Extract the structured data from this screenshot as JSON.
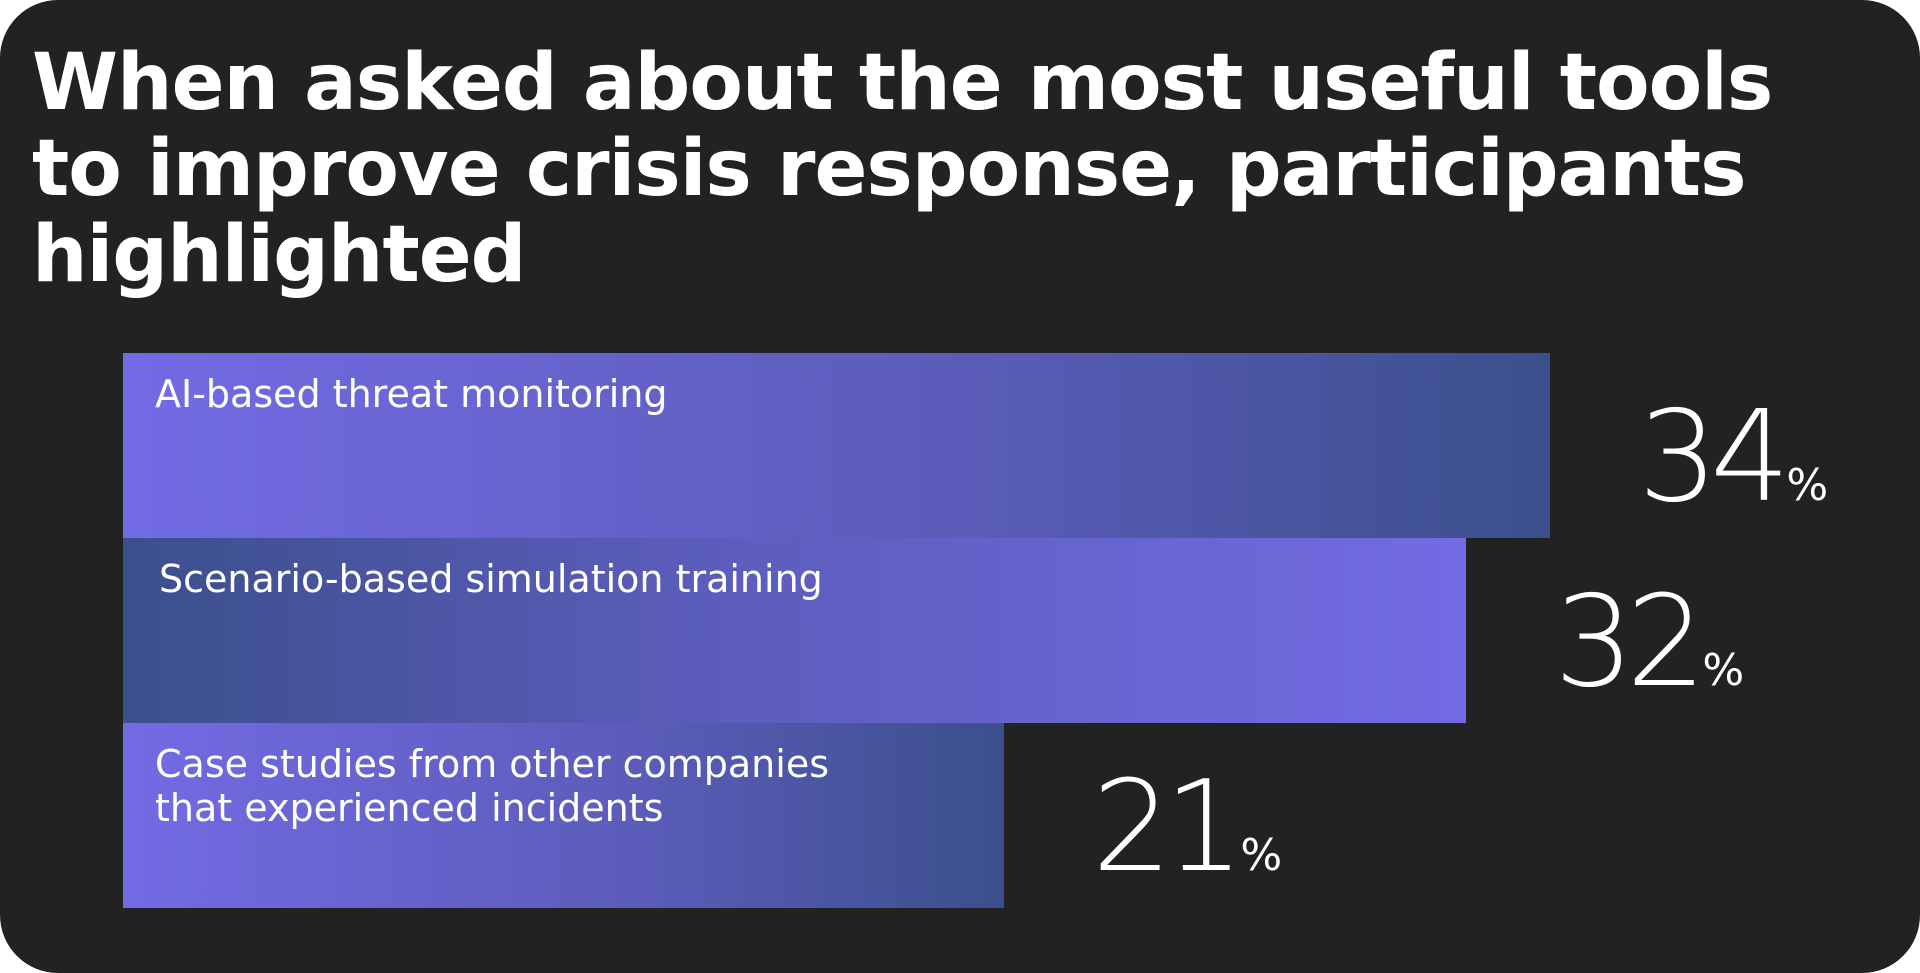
{
  "colors": {
    "background": "#222222",
    "bar_light": "#736be4",
    "bar_dark": "#3b4f8c",
    "text": "#ffffff"
  },
  "chart_data": {
    "type": "bar",
    "orientation": "horizontal",
    "title": "When asked about the most useful tools to improve crisis response, participants highlighted",
    "categories": [
      [
        "AI-based threat monitoring"
      ],
      [
        "Scenario-based simulation training"
      ],
      [
        "Case studies from other companies",
        "that experienced incidents"
      ]
    ],
    "values": [
      34,
      32,
      21
    ],
    "value_unit": "%",
    "value_labels": [
      "34",
      "32",
      "21"
    ],
    "xlim": [
      0,
      34
    ],
    "grid": false,
    "legend": "none"
  }
}
